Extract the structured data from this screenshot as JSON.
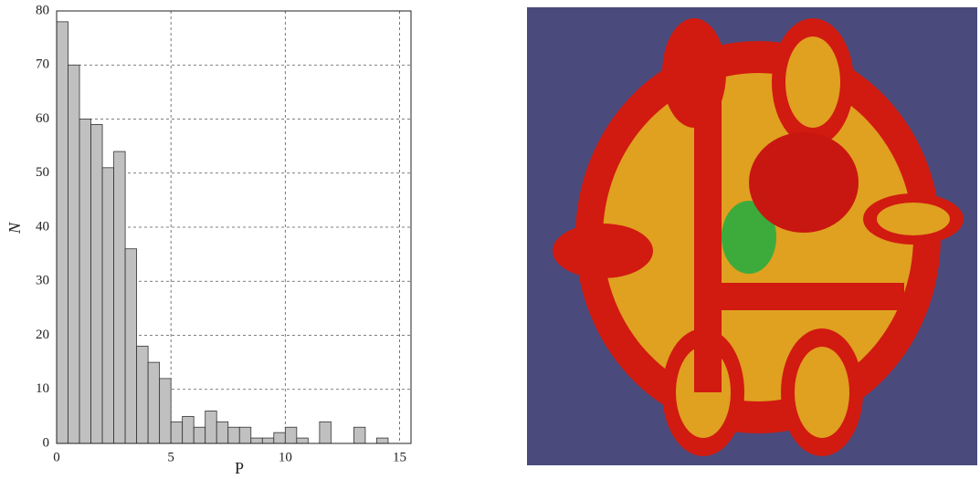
{
  "chart_data": {
    "type": "histogram",
    "xlabel": "P",
    "ylabel": "N",
    "bins": [
      0,
      0.5,
      1,
      1.5,
      2,
      2.5,
      3,
      3.5,
      4,
      4.5,
      5,
      5.5,
      6,
      6.5,
      7,
      7.5,
      8,
      8.5,
      9,
      9.5,
      10,
      10.5,
      11,
      11.5,
      12,
      12.5,
      13,
      13.5,
      14,
      14.5,
      15
    ],
    "values": [
      78,
      70,
      60,
      59,
      51,
      54,
      36,
      18,
      15,
      12,
      4,
      5,
      3,
      6,
      4,
      3,
      3,
      1,
      1,
      2,
      3,
      1,
      0,
      4,
      0,
      0,
      3,
      0,
      1,
      0
    ],
    "color": "#c0c0c0",
    "xlim": [
      0,
      15.5
    ],
    "xticks": [
      0,
      5,
      10,
      15
    ],
    "ylim": [
      0,
      80
    ],
    "yticks": [
      0,
      10,
      20,
      30,
      40,
      50,
      60,
      70,
      80
    ],
    "grid": true
  }
}
